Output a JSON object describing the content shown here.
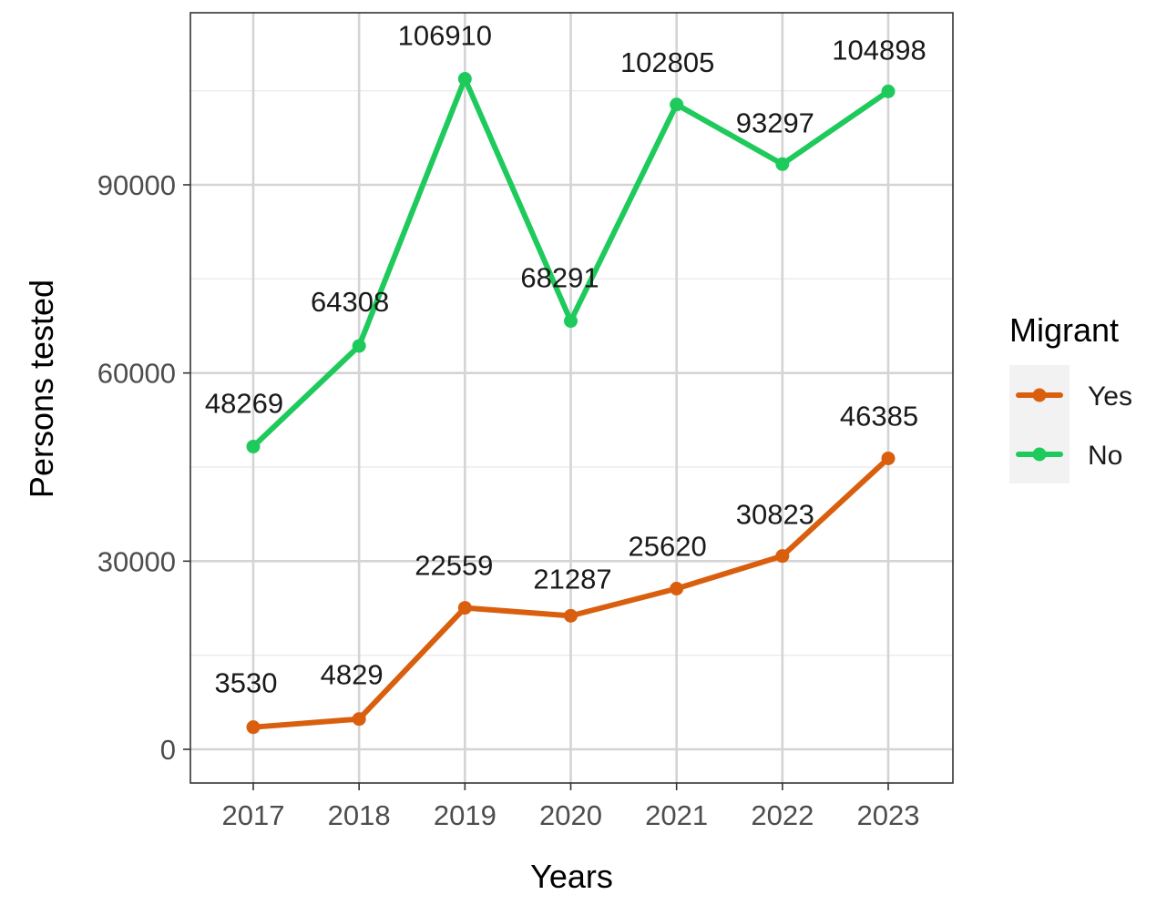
{
  "chart_data": {
    "type": "line",
    "x": [
      2017,
      2018,
      2019,
      2020,
      2021,
      2022,
      2023
    ],
    "categories": [
      "2017",
      "2018",
      "2019",
      "2020",
      "2021",
      "2022",
      "2023"
    ],
    "series": [
      {
        "name": "Yes",
        "color": "#d95f0e",
        "values": [
          3530,
          4829,
          22559,
          21287,
          25620,
          30823,
          46385
        ],
        "labels": [
          "3530",
          "4829",
          "22559",
          "21287",
          "25620",
          "30823",
          "46385"
        ]
      },
      {
        "name": "No",
        "color": "#1fca5c",
        "values": [
          48269,
          64308,
          106910,
          68291,
          102805,
          93297,
          104898
        ],
        "labels": [
          "48269",
          "64308",
          "106910",
          "68291",
          "102805",
          "93297",
          "104898"
        ]
      }
    ],
    "xlabel": "Years",
    "ylabel": "Persons tested",
    "yticks": [
      0,
      30000,
      60000,
      90000
    ],
    "ytick_labels": [
      "0",
      "30000",
      "60000",
      "90000"
    ],
    "ylim": [
      -5000,
      117000
    ],
    "grid": true,
    "legend": {
      "title": "Migrant",
      "position": "right",
      "entries": [
        "Yes",
        "No"
      ]
    }
  }
}
